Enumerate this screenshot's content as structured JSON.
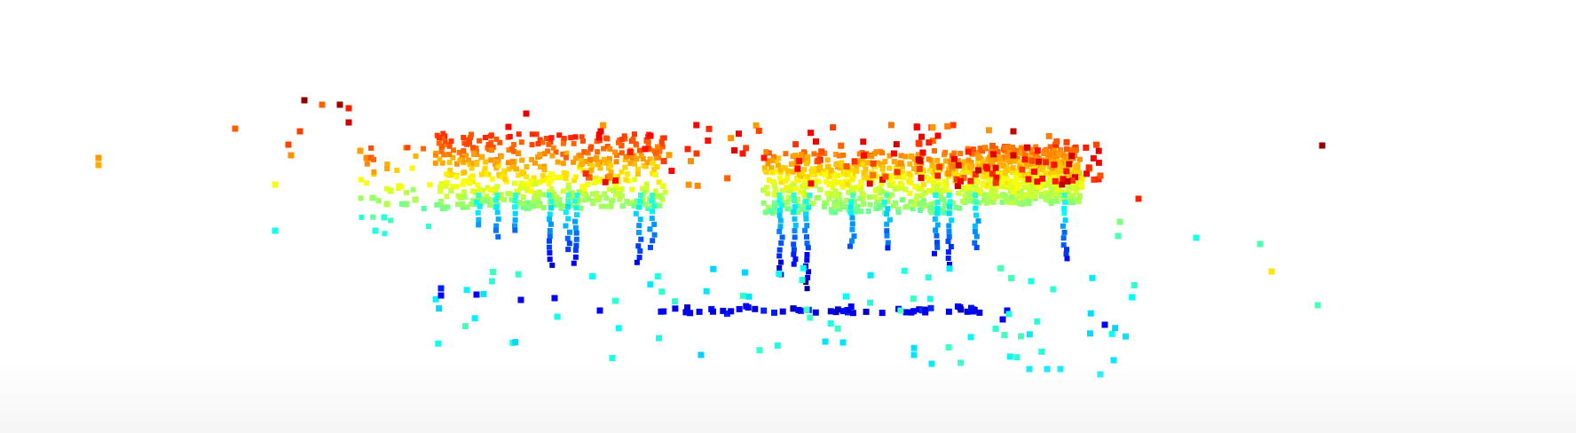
{
  "scene": {
    "description_colormap": "jet",
    "background_color": "#ffffff",
    "point_color_stops": [
      "#00008f",
      "#0000ff",
      "#0080ff",
      "#00ffff",
      "#80ff80",
      "#ffff00",
      "#ff8000",
      "#ff0000",
      "#800000"
    ]
  }
}
